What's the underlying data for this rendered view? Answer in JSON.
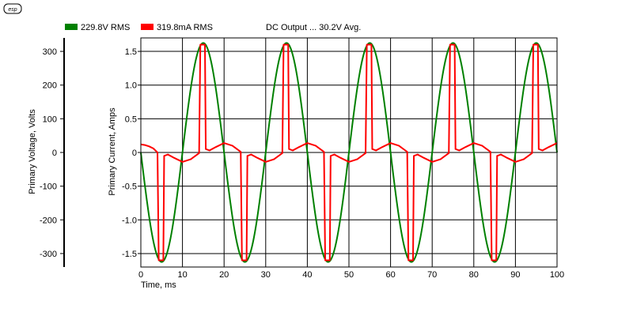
{
  "logo_text": "esp",
  "legend": {
    "voltage_label": "229.8V RMS",
    "current_label": "319.8mA RMS",
    "note": "DC Output ... 30.2V Avg."
  },
  "colors": {
    "voltage": "#008000",
    "current": "#ff0000",
    "grid": "#000000",
    "background": "#ffffff"
  },
  "chart_data": {
    "type": "line",
    "xlabel": "Time, ms",
    "xlim": [
      0,
      100
    ],
    "x_ticks": [
      0,
      10,
      20,
      30,
      40,
      50,
      60,
      70,
      80,
      90,
      100
    ],
    "left_axis": {
      "label": "Primary Voltage, Volts",
      "lim": [
        -340,
        340
      ],
      "ticks": [
        300,
        200,
        100,
        0,
        -100,
        -200,
        -300
      ]
    },
    "right_axis": {
      "label": "Primary Current, Amps",
      "lim": [
        -1.7,
        1.7
      ],
      "ticks": [
        1.5,
        1.0,
        0.5,
        0,
        -0.5,
        -1.0,
        -1.5
      ]
    },
    "grid": true,
    "legend_position": "top",
    "series": [
      {
        "name": "229.8V RMS",
        "axis": "left",
        "waveform": "sine",
        "amplitude": 325,
        "frequency_hz": 50,
        "phase": "0 V at t=0, falling, negative peak at t=5ms"
      },
      {
        "name": "319.8mA RMS",
        "axis": "right",
        "points": [
          [
            0,
            0.12
          ],
          [
            1,
            0.11
          ],
          [
            2,
            0.09
          ],
          [
            3,
            0.06
          ],
          [
            4,
            0.0
          ],
          [
            4.3,
            -1.6
          ],
          [
            5.4,
            -1.6
          ],
          [
            5.6,
            -0.05
          ],
          [
            6.5,
            -0.03
          ],
          [
            8,
            -0.08
          ],
          [
            10,
            -0.14
          ],
          [
            12,
            -0.1
          ],
          [
            14,
            -0.01
          ],
          [
            14.3,
            1.6
          ],
          [
            15.4,
            1.6
          ],
          [
            15.6,
            0.05
          ],
          [
            16.5,
            0.03
          ],
          [
            18,
            0.08
          ],
          [
            20,
            0.14
          ],
          [
            22,
            0.1
          ],
          [
            24,
            0.01
          ],
          [
            24.3,
            -1.6
          ],
          [
            25.4,
            -1.6
          ],
          [
            25.6,
            -0.05
          ],
          [
            26.5,
            -0.03
          ],
          [
            28,
            -0.08
          ],
          [
            30,
            -0.14
          ],
          [
            32,
            -0.1
          ],
          [
            34,
            -0.01
          ],
          [
            34.3,
            1.6
          ],
          [
            35.4,
            1.6
          ],
          [
            35.6,
            0.05
          ],
          [
            36.5,
            0.03
          ],
          [
            38,
            0.08
          ],
          [
            40,
            0.14
          ],
          [
            42,
            0.1
          ],
          [
            44,
            0.01
          ],
          [
            44.3,
            -1.6
          ],
          [
            45.4,
            -1.6
          ],
          [
            45.6,
            -0.05
          ],
          [
            46.5,
            -0.03
          ],
          [
            48,
            -0.08
          ],
          [
            50,
            -0.14
          ],
          [
            52,
            -0.1
          ],
          [
            54,
            -0.01
          ],
          [
            54.3,
            1.6
          ],
          [
            55.4,
            1.6
          ],
          [
            55.6,
            0.05
          ],
          [
            56.5,
            0.03
          ],
          [
            58,
            0.08
          ],
          [
            60,
            0.14
          ],
          [
            62,
            0.1
          ],
          [
            64,
            0.01
          ],
          [
            64.3,
            -1.6
          ],
          [
            65.4,
            -1.6
          ],
          [
            65.6,
            -0.05
          ],
          [
            66.5,
            -0.03
          ],
          [
            68,
            -0.08
          ],
          [
            70,
            -0.14
          ],
          [
            72,
            -0.1
          ],
          [
            74,
            -0.01
          ],
          [
            74.3,
            1.6
          ],
          [
            75.4,
            1.6
          ],
          [
            75.6,
            0.05
          ],
          [
            76.5,
            0.03
          ],
          [
            78,
            0.08
          ],
          [
            80,
            0.14
          ],
          [
            82,
            0.1
          ],
          [
            84,
            0.01
          ],
          [
            84.3,
            -1.6
          ],
          [
            85.4,
            -1.6
          ],
          [
            85.6,
            -0.05
          ],
          [
            86.5,
            -0.03
          ],
          [
            88,
            -0.08
          ],
          [
            90,
            -0.14
          ],
          [
            92,
            -0.1
          ],
          [
            94,
            -0.01
          ],
          [
            94.3,
            1.6
          ],
          [
            95.4,
            1.6
          ],
          [
            95.6,
            0.05
          ],
          [
            96.5,
            0.03
          ],
          [
            98,
            0.08
          ],
          [
            100,
            0.14
          ]
        ]
      }
    ]
  }
}
